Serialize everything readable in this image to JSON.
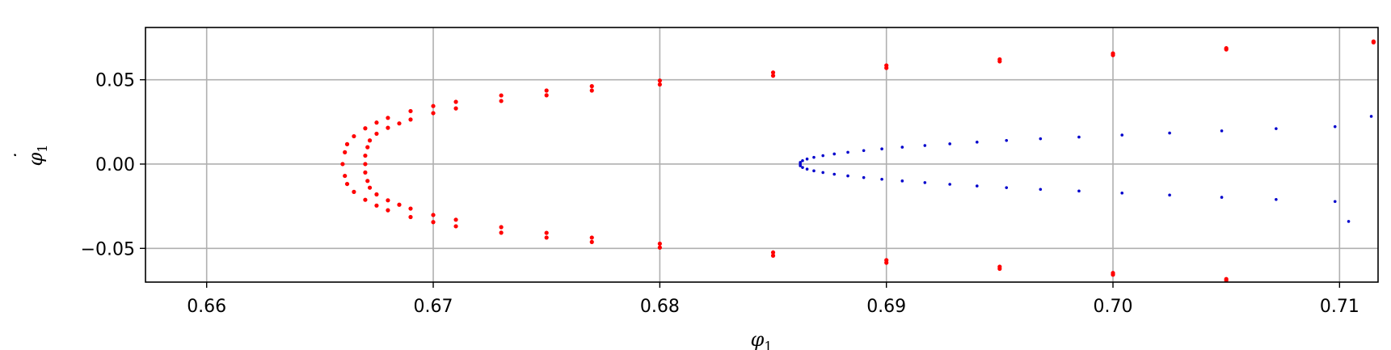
{
  "chart_data": {
    "type": "scatter",
    "title": "",
    "xlabel": "φ",
    "xlabel_sub": "1",
    "ylabel": "φ",
    "ylabel_sub": "1",
    "ylabel_dot": "˙",
    "xlim": [
      0.6573,
      0.7117
    ],
    "ylim": [
      -0.07,
      0.081
    ],
    "xticks": [
      {
        "value": 0.66,
        "label": "0.66"
      },
      {
        "value": 0.67,
        "label": "0.67"
      },
      {
        "value": 0.68,
        "label": "0.68"
      },
      {
        "value": 0.69,
        "label": "0.69"
      },
      {
        "value": 0.7,
        "label": "0.70"
      },
      {
        "value": 0.71,
        "label": "0.71"
      }
    ],
    "yticks": [
      {
        "value": 0.05,
        "label": "0.05"
      },
      {
        "value": 0.0,
        "label": "0.00"
      },
      {
        "value": -0.05,
        "label": "−0.05"
      }
    ],
    "grid": true,
    "legend": "none",
    "series": [
      {
        "color": "#ff0000",
        "marker": "dense",
        "points": [
          [
            0.7115,
            0.0727
          ],
          [
            0.705,
            0.0687
          ],
          [
            0.7,
            0.0656
          ],
          [
            0.695,
            0.0621
          ],
          [
            0.69,
            0.0585
          ],
          [
            0.685,
            0.0543
          ],
          [
            0.68,
            0.0495
          ],
          [
            0.677,
            0.0462
          ],
          [
            0.675,
            0.0436
          ],
          [
            0.673,
            0.0407
          ],
          [
            0.671,
            0.0369
          ],
          [
            0.67,
            0.0344
          ],
          [
            0.669,
            0.0314
          ],
          [
            0.668,
            0.0274
          ],
          [
            0.6675,
            0.0246
          ],
          [
            0.667,
            0.0212
          ],
          [
            0.6665,
            0.0165
          ],
          [
            0.6662,
            0.0118
          ],
          [
            0.6661,
            0.007
          ],
          [
            0.666,
            0.0
          ],
          [
            0.6661,
            -0.007
          ],
          [
            0.6662,
            -0.0118
          ],
          [
            0.6665,
            -0.0165
          ],
          [
            0.667,
            -0.0212
          ],
          [
            0.6675,
            -0.0246
          ],
          [
            0.668,
            -0.0274
          ],
          [
            0.669,
            -0.0314
          ],
          [
            0.67,
            -0.0344
          ],
          [
            0.671,
            -0.0369
          ],
          [
            0.673,
            -0.0407
          ],
          [
            0.675,
            -0.0436
          ],
          [
            0.677,
            -0.0462
          ],
          [
            0.68,
            -0.0495
          ],
          [
            0.685,
            -0.0543
          ],
          [
            0.69,
            -0.0585
          ],
          [
            0.695,
            -0.0621
          ],
          [
            0.7,
            -0.0656
          ],
          [
            0.705,
            -0.069
          ],
          [
            0.709,
            -0.0715
          ],
          [
            0.7115,
            0.0722
          ],
          [
            0.705,
            0.068
          ],
          [
            0.7,
            0.0646
          ],
          [
            0.695,
            0.0609
          ],
          [
            0.69,
            0.057
          ],
          [
            0.685,
            0.0524
          ],
          [
            0.68,
            0.0472
          ],
          [
            0.677,
            0.0436
          ],
          [
            0.675,
            0.0408
          ],
          [
            0.673,
            0.0374
          ],
          [
            0.671,
            0.033
          ],
          [
            0.67,
            0.0302
          ],
          [
            0.669,
            0.0264
          ],
          [
            0.6685,
            0.0241
          ],
          [
            0.668,
            0.0215
          ],
          [
            0.6675,
            0.018
          ],
          [
            0.6672,
            0.014
          ],
          [
            0.6671,
            0.01
          ],
          [
            0.667,
            0.005
          ],
          [
            0.667,
            0.0
          ],
          [
            0.667,
            -0.005
          ],
          [
            0.6671,
            -0.01
          ],
          [
            0.6672,
            -0.014
          ],
          [
            0.6675,
            -0.018
          ],
          [
            0.668,
            -0.0215
          ],
          [
            0.6685,
            -0.0241
          ],
          [
            0.669,
            -0.0264
          ],
          [
            0.67,
            -0.0302
          ],
          [
            0.671,
            -0.033
          ],
          [
            0.673,
            -0.0374
          ],
          [
            0.675,
            -0.0408
          ],
          [
            0.677,
            -0.0436
          ],
          [
            0.68,
            -0.0472
          ],
          [
            0.685,
            -0.0524
          ],
          [
            0.69,
            -0.057
          ],
          [
            0.695,
            -0.0609
          ],
          [
            0.7,
            -0.0646
          ],
          [
            0.705,
            -0.0682
          ]
        ]
      },
      {
        "color": "#0000cc",
        "marker": "dot",
        "points": [
          [
            0.6862,
            0.0
          ],
          [
            0.6862,
            0.001
          ],
          [
            0.6863,
            0.002
          ],
          [
            0.6865,
            0.003
          ],
          [
            0.6868,
            0.004
          ],
          [
            0.6872,
            0.005
          ],
          [
            0.6877,
            0.006
          ],
          [
            0.6883,
            0.007
          ],
          [
            0.689,
            0.008
          ],
          [
            0.6898,
            0.009
          ],
          [
            0.6907,
            0.01
          ],
          [
            0.6917,
            0.011
          ],
          [
            0.6928,
            0.012
          ],
          [
            0.694,
            0.013
          ],
          [
            0.6953,
            0.014
          ],
          [
            0.6968,
            0.015
          ],
          [
            0.6985,
            0.016
          ],
          [
            0.7004,
            0.0172
          ],
          [
            0.7025,
            0.0184
          ],
          [
            0.7048,
            0.0197
          ],
          [
            0.7072,
            0.021
          ],
          [
            0.7098,
            0.0222
          ],
          [
            0.7114,
            0.0283
          ],
          [
            0.6862,
            -0.001
          ],
          [
            0.6863,
            -0.002
          ],
          [
            0.6865,
            -0.003
          ],
          [
            0.6868,
            -0.004
          ],
          [
            0.6872,
            -0.005
          ],
          [
            0.6877,
            -0.006
          ],
          [
            0.6883,
            -0.007
          ],
          [
            0.689,
            -0.008
          ],
          [
            0.6898,
            -0.009
          ],
          [
            0.6907,
            -0.01
          ],
          [
            0.6917,
            -0.011
          ],
          [
            0.6928,
            -0.012
          ],
          [
            0.694,
            -0.013
          ],
          [
            0.6953,
            -0.014
          ],
          [
            0.6968,
            -0.015
          ],
          [
            0.6985,
            -0.016
          ],
          [
            0.7004,
            -0.0172
          ],
          [
            0.7025,
            -0.0184
          ],
          [
            0.7048,
            -0.0197
          ],
          [
            0.7072,
            -0.021
          ],
          [
            0.7098,
            -0.0222
          ],
          [
            0.7104,
            -0.034
          ]
        ]
      }
    ]
  }
}
